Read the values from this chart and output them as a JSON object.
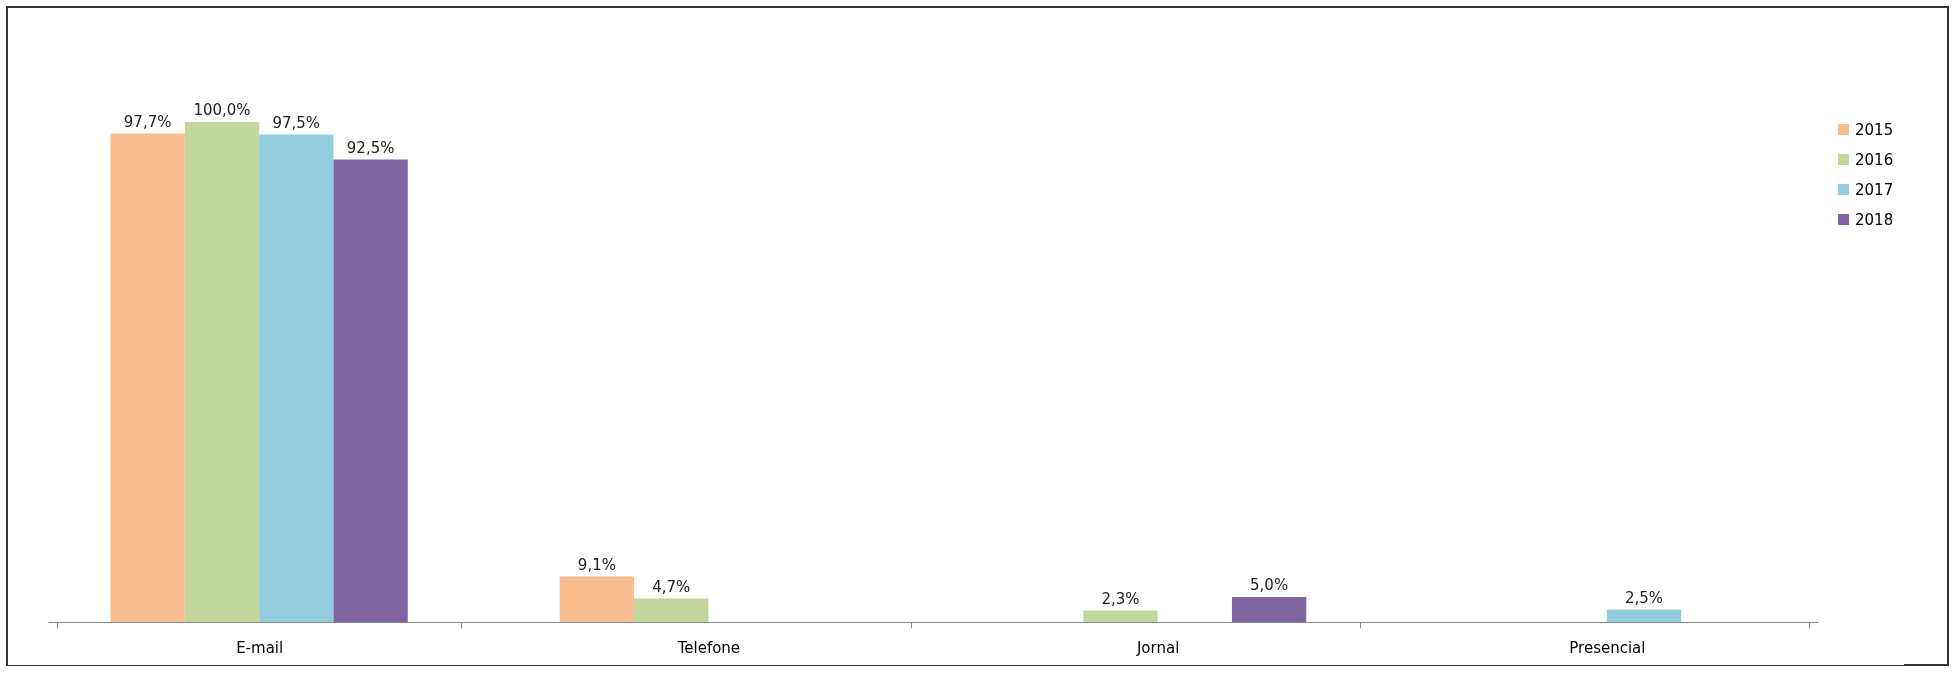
{
  "chart_data": {
    "type": "bar",
    "categories": [
      "E-mail",
      "Telefone",
      "Jornal",
      "Presencial"
    ],
    "series": [
      {
        "name": "2015",
        "color": "#f9be8f",
        "values": [
          97.7,
          9.1,
          null,
          null
        ],
        "value_labels": [
          "97,7%",
          "9,1%",
          null,
          null
        ]
      },
      {
        "name": "2016",
        "color": "#c3d69b",
        "values": [
          100.0,
          4.7,
          2.3,
          null
        ],
        "value_labels": [
          "100,0%",
          "4,7%",
          "2,3%",
          null
        ]
      },
      {
        "name": "2017",
        "color": "#93cddd",
        "values": [
          97.5,
          null,
          null,
          2.5
        ],
        "value_labels": [
          "97,5%",
          null,
          null,
          "2,5%"
        ]
      },
      {
        "name": "2018",
        "color": "#8064a2",
        "values": [
          92.5,
          null,
          5.0,
          null
        ],
        "value_labels": [
          "92,5%",
          null,
          "5,0%",
          null
        ]
      }
    ],
    "legend": "right"
  }
}
